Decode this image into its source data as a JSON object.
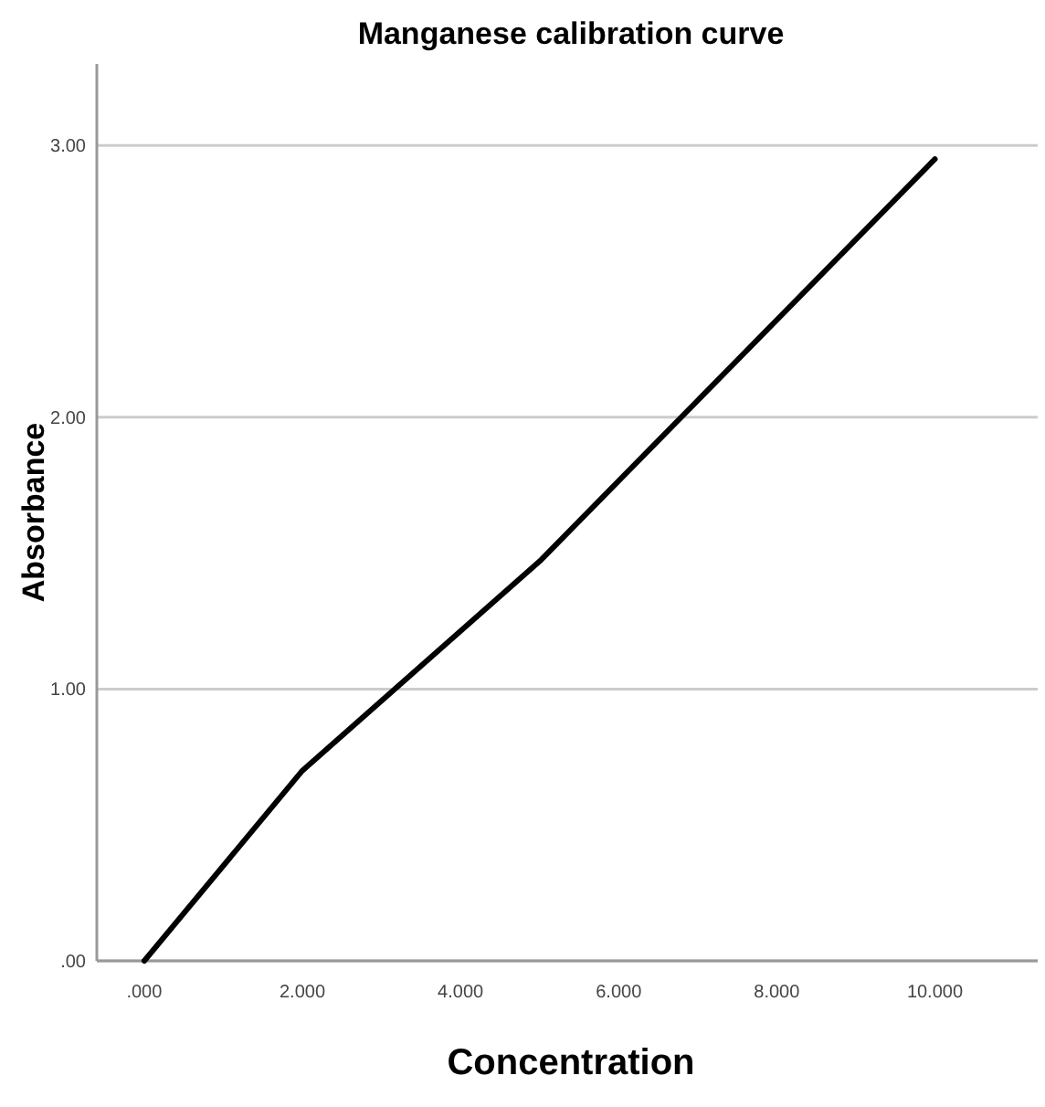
{
  "chart_data": {
    "type": "line",
    "title": "Manganese calibration curve",
    "xlabel": "Concentration",
    "ylabel": "Absorbance",
    "x": [
      0,
      2,
      5,
      10
    ],
    "series": [
      {
        "color": "#000000",
        "values": [
          0,
          0.7,
          1.47,
          2.95
        ]
      }
    ],
    "xlim": [
      -0.6,
      11.3
    ],
    "ylim": [
      0,
      3.3
    ],
    "xticks": [
      {
        "value": 0,
        "label": ".000"
      },
      {
        "value": 2,
        "label": "2.000"
      },
      {
        "value": 4,
        "label": "4.000"
      },
      {
        "value": 6,
        "label": "6.000"
      },
      {
        "value": 8,
        "label": "8.000"
      },
      {
        "value": 10,
        "label": "10.000"
      }
    ],
    "yticks": [
      {
        "value": 0,
        "label": ".00"
      },
      {
        "value": 1,
        "label": "1.00"
      },
      {
        "value": 2,
        "label": "2.00"
      },
      {
        "value": 3,
        "label": "3.00"
      }
    ],
    "grid": "y",
    "marker": "none",
    "line_style": "solid"
  }
}
